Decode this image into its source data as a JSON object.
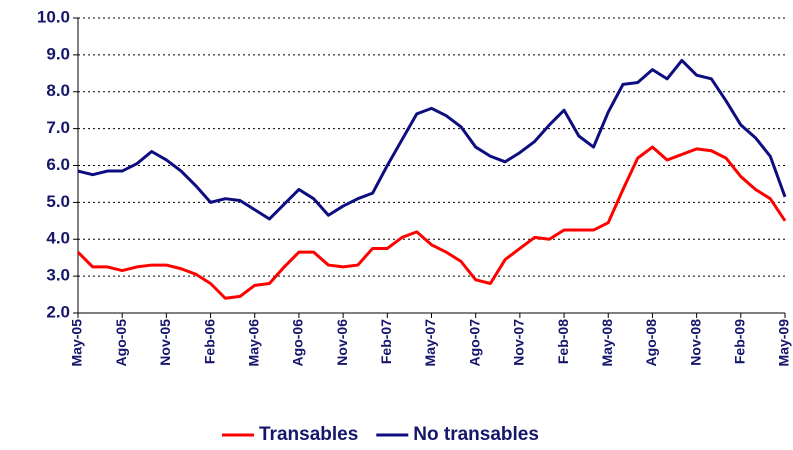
{
  "chart_data": {
    "type": "line",
    "categories": [
      "May-05",
      null,
      null,
      "Ago-05",
      null,
      null,
      "Nov-05",
      null,
      null,
      "Feb-06",
      null,
      null,
      "May-06",
      null,
      null,
      "Ago-06",
      null,
      null,
      "Nov-06",
      null,
      null,
      "Feb-07",
      null,
      null,
      "May-07",
      null,
      null,
      "Ago-07",
      null,
      null,
      "Nov-07",
      null,
      null,
      "Feb-08",
      null,
      null,
      "May-08",
      null,
      null,
      "Ago-08",
      null,
      null,
      "Nov-08",
      null,
      null,
      "Feb-09",
      null,
      null,
      "May-09"
    ],
    "series": [
      {
        "name": "Transables",
        "color": "#ff0000",
        "values": [
          3.65,
          3.25,
          3.25,
          3.15,
          3.25,
          3.3,
          3.3,
          3.2,
          3.05,
          2.8,
          2.4,
          2.45,
          2.75,
          2.8,
          3.25,
          3.65,
          3.65,
          3.3,
          3.25,
          3.3,
          3.75,
          3.75,
          4.05,
          4.2,
          3.85,
          3.65,
          3.4,
          2.9,
          2.8,
          3.45,
          3.75,
          4.05,
          4.0,
          4.25,
          4.25,
          4.25,
          4.45,
          5.35,
          6.2,
          6.5,
          6.15,
          6.3,
          6.45,
          6.4,
          6.2,
          5.7,
          5.35,
          5.1,
          4.5
        ]
      },
      {
        "name": "No transables",
        "color": "#0d0d80",
        "values": [
          5.85,
          5.75,
          5.85,
          5.85,
          6.05,
          6.38,
          6.15,
          5.85,
          5.45,
          5.0,
          5.1,
          5.05,
          4.8,
          4.55,
          4.95,
          5.35,
          5.1,
          4.65,
          4.9,
          5.1,
          5.25,
          6.0,
          6.7,
          7.4,
          7.55,
          7.35,
          7.05,
          6.5,
          6.25,
          6.1,
          6.35,
          6.65,
          7.1,
          7.5,
          6.8,
          6.5,
          7.45,
          8.2,
          8.25,
          8.6,
          8.35,
          8.85,
          8.45,
          8.35,
          7.75,
          7.1,
          6.75,
          6.25,
          5.15
        ]
      }
    ],
    "ylim": [
      2,
      10
    ],
    "yticks": [
      {
        "value": 2,
        "label": "2.0"
      },
      {
        "value": 3,
        "label": "3.0"
      },
      {
        "value": 4,
        "label": "4.0"
      },
      {
        "value": 5,
        "label": "5.0"
      },
      {
        "value": 6,
        "label": "6.0"
      },
      {
        "value": 7,
        "label": "7.0"
      },
      {
        "value": 8,
        "label": "8.0"
      },
      {
        "value": 9,
        "label": "9.0"
      },
      {
        "value": 10,
        "label": "10.0"
      }
    ],
    "grid": true,
    "legend": "bottom"
  }
}
